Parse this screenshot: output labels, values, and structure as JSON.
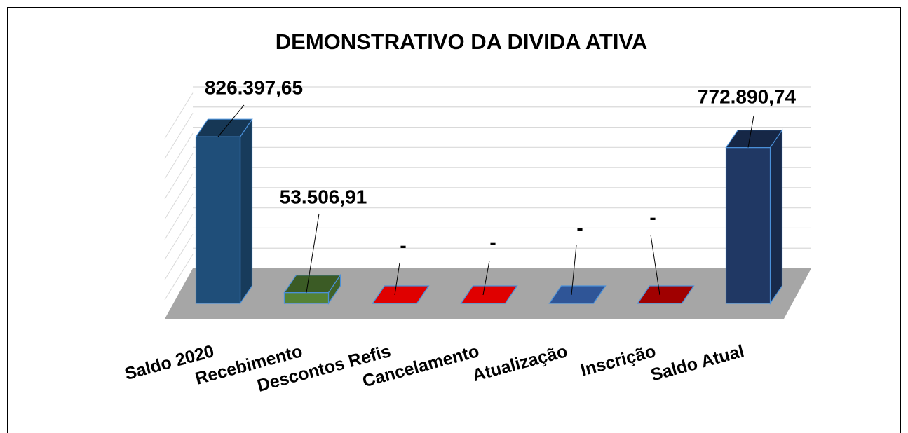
{
  "chart_data": {
    "type": "bar3d",
    "title": "DEMONSTRATIVO DA DIVIDA ATIVA",
    "categories": [
      "Saldo 2020",
      "Recebimento",
      "Descontos Refis",
      "Cancelamento",
      "Atualização",
      "Inscrição",
      "Saldo Atual"
    ],
    "values": [
      826397.65,
      53506.91,
      0,
      0,
      0,
      0,
      772890.74
    ],
    "value_labels": [
      "826.397,65",
      "53.506,91",
      "-",
      "-",
      "-",
      "-",
      "772.890,74"
    ],
    "colors": [
      "#1f4e79",
      "#548235",
      "#e00000",
      "#e00000",
      "#2f5597",
      "#a00000",
      "#203864"
    ],
    "ylim": [
      0,
      900000
    ],
    "yticks": [
      0,
      100000,
      200000,
      300000,
      400000,
      500000,
      600000,
      700000,
      800000,
      900000
    ],
    "grid": true
  }
}
